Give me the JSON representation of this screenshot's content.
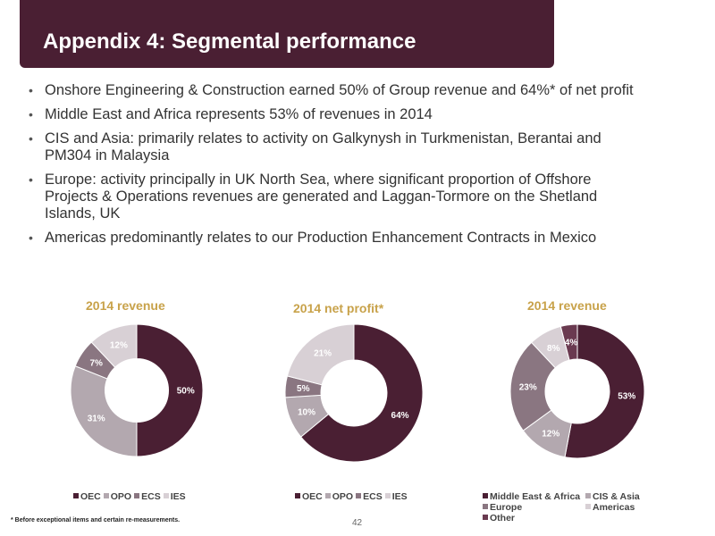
{
  "header": {
    "title": "Appendix 4: Segmental performance"
  },
  "bullets": [
    {
      "lines": [
        "Onshore Engineering & Construction earned 50% of Group revenue and 64%* of net profit"
      ]
    },
    {
      "lines": [
        "Middle East and Africa represents 53% of revenues in 2014"
      ]
    },
    {
      "lines": [
        "CIS and Asia: primarily relates to activity on Galkynysh in Turkmenistan, Berantai and",
        "PM304 in Malaysia"
      ]
    },
    {
      "lines": [
        "Europe: activity principally in UK North Sea, where significant proportion of Offshore",
        "Projects & Operations revenues are generated and Laggan-Tormore on the Shetland",
        "Islands, UK"
      ]
    },
    {
      "lines": [
        "Americas predominantly relates to our Production Enhancement Contracts in Mexico"
      ]
    }
  ],
  "chart_data": [
    {
      "type": "pie",
      "title": "2014 revenue",
      "categories": [
        "OEC",
        "OPO",
        "ECS",
        "IES"
      ],
      "values": [
        50,
        31,
        7,
        12
      ],
      "colors": [
        "#4a1f33",
        "#b3a8af",
        "#8a7681",
        "#d8d0d5"
      ],
      "labels": [
        "50%",
        "31%",
        "7%",
        "12%"
      ],
      "legend": "bottom"
    },
    {
      "type": "pie",
      "title": "2014 net profit*",
      "categories": [
        "OEC",
        "OPO",
        "ECS",
        "IES"
      ],
      "values": [
        64,
        10,
        5,
        21
      ],
      "colors": [
        "#4a1f33",
        "#b3a8af",
        "#8a7681",
        "#d8d0d5"
      ],
      "labels": [
        "64%",
        "10%",
        "5%",
        "21%"
      ],
      "legend": "bottom"
    },
    {
      "type": "pie",
      "title": "2014 revenue",
      "categories": [
        "Middle East & Africa",
        "CIS & Asia",
        "Europe",
        "Americas",
        "Other"
      ],
      "values": [
        53,
        12,
        23,
        8,
        4
      ],
      "colors": [
        "#4a1f33",
        "#b3a8af",
        "#8a7681",
        "#d8d0d5",
        "#6a3a50"
      ],
      "labels": [
        "53%",
        "12%",
        "23%",
        "8%",
        "4%"
      ],
      "legend": "bottom"
    }
  ],
  "footer": {
    "footnote": "* Before exceptional items and certain re-measurements.",
    "page_number": "42"
  }
}
